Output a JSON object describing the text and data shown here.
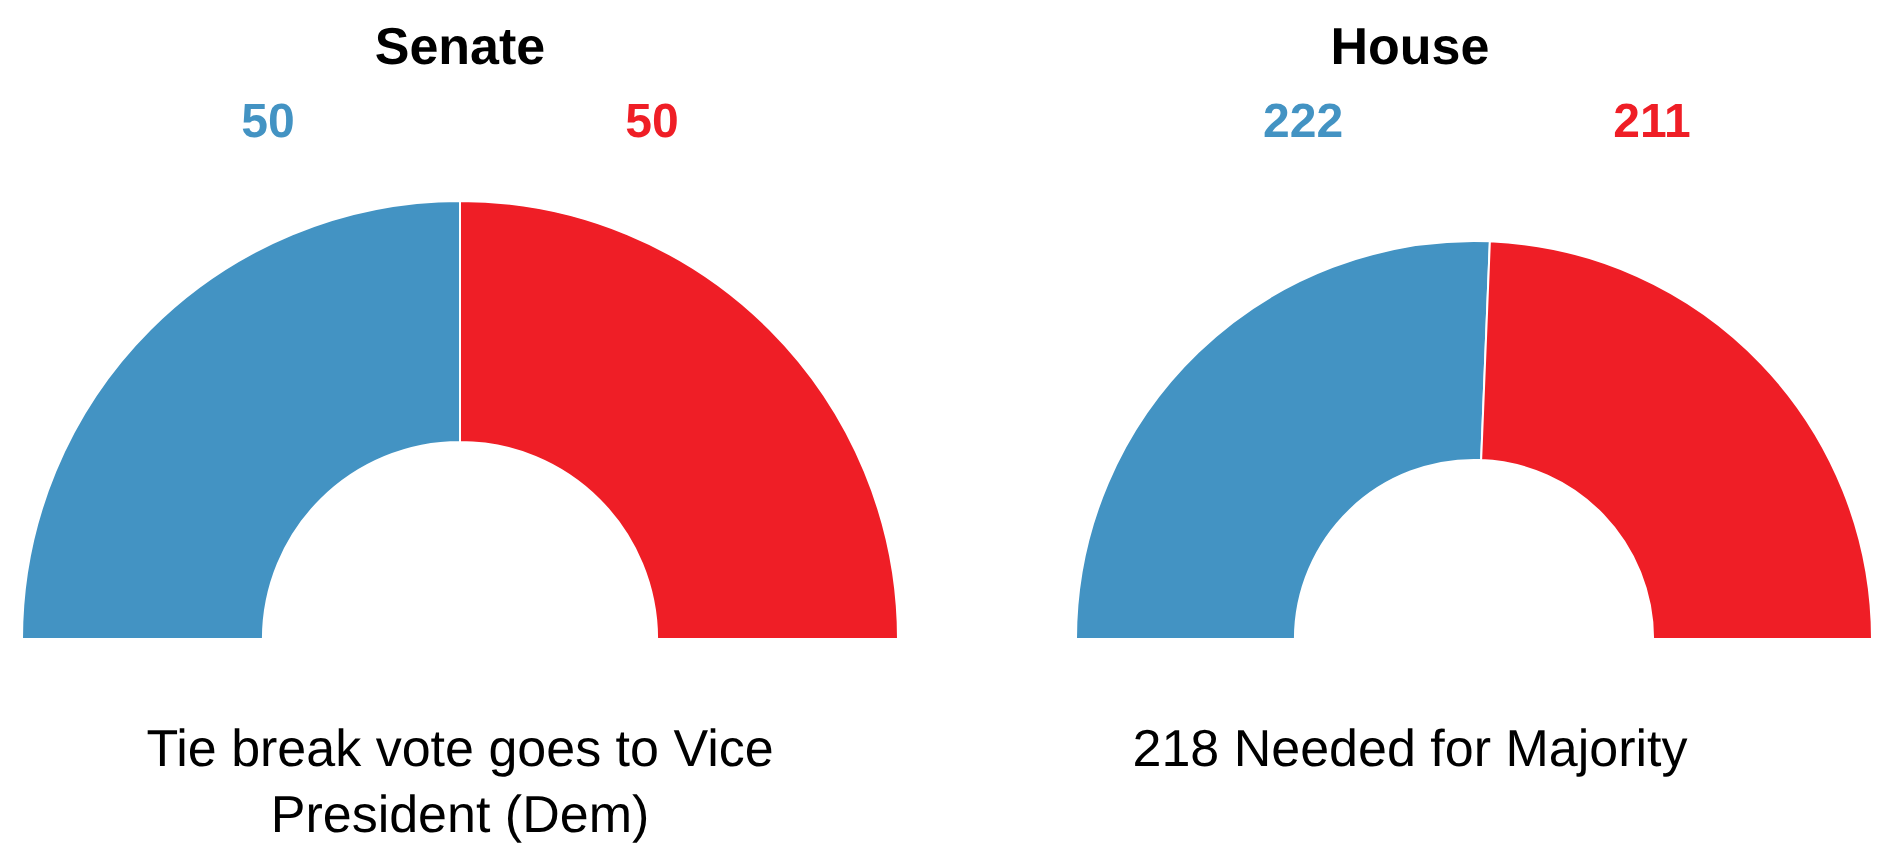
{
  "chart_data": [
    {
      "type": "donut",
      "title": "Senate",
      "categories": [
        null,
        null
      ],
      "values": [
        50,
        50
      ],
      "colors": [
        "#4393c3",
        "#ef1e26"
      ],
      "data_labels": true,
      "legend": false,
      "annotations": [
        "Tie break vote goes to Vice President (Dem)"
      ]
    },
    {
      "type": "donut",
      "title": "House",
      "categories": [
        null,
        null
      ],
      "values": [
        222,
        211
      ],
      "colors": [
        "#4393c3",
        "#ef1e26"
      ],
      "data_labels": true,
      "legend": false,
      "annotations": [
        "218 Needed for Majority"
      ]
    }
  ]
}
